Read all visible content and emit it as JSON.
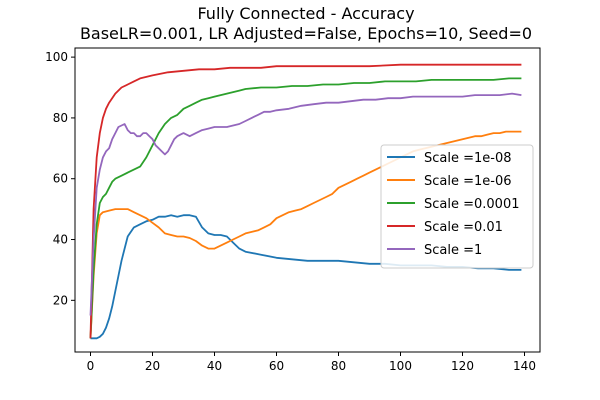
{
  "chart_data": {
    "type": "line",
    "title_line1": "Fully Connected - Accuracy",
    "title_line2": "BaseLR=0.001, LR Adjusted=False, Epochs=10, Seed=0",
    "xlabel": "",
    "ylabel": "",
    "xlim": [
      -5,
      145
    ],
    "ylim": [
      3,
      103
    ],
    "xticks": [
      0,
      20,
      40,
      60,
      80,
      100,
      120,
      140
    ],
    "yticks": [
      20,
      40,
      60,
      80,
      100
    ],
    "grid": false,
    "legend_position": "center-right",
    "series": [
      {
        "name": "Scale =1e-08",
        "color": "#1f77b4",
        "points": [
          [
            0,
            7.5
          ],
          [
            2,
            7.5
          ],
          [
            3,
            8
          ],
          [
            4,
            9
          ],
          [
            5,
            11
          ],
          [
            6,
            14
          ],
          [
            7,
            18
          ],
          [
            8,
            23
          ],
          [
            9,
            28
          ],
          [
            10,
            33
          ],
          [
            11,
            37
          ],
          [
            12,
            41
          ],
          [
            14,
            44
          ],
          [
            16,
            45
          ],
          [
            18,
            46
          ],
          [
            20,
            46.5
          ],
          [
            22,
            47.5
          ],
          [
            24,
            47.5
          ],
          [
            26,
            48
          ],
          [
            28,
            47.5
          ],
          [
            30,
            48
          ],
          [
            32,
            48
          ],
          [
            34,
            47.5
          ],
          [
            36,
            44
          ],
          [
            38,
            42
          ],
          [
            40,
            41.5
          ],
          [
            42,
            41.5
          ],
          [
            44,
            41
          ],
          [
            46,
            39
          ],
          [
            48,
            37
          ],
          [
            50,
            36
          ],
          [
            55,
            35
          ],
          [
            60,
            34
          ],
          [
            65,
            33.5
          ],
          [
            70,
            33
          ],
          [
            75,
            33
          ],
          [
            80,
            33
          ],
          [
            85,
            32.5
          ],
          [
            90,
            32
          ],
          [
            95,
            32
          ],
          [
            100,
            31.5
          ],
          [
            105,
            31.5
          ],
          [
            110,
            31.5
          ],
          [
            115,
            31
          ],
          [
            120,
            31
          ],
          [
            125,
            30.5
          ],
          [
            130,
            30.5
          ],
          [
            135,
            30
          ],
          [
            139,
            30
          ]
        ]
      },
      {
        "name": "Scale =1e-06",
        "color": "#ff7f0e",
        "points": [
          [
            0,
            7.5
          ],
          [
            1,
            28
          ],
          [
            2,
            42
          ],
          [
            3,
            48
          ],
          [
            4,
            49
          ],
          [
            6,
            49.5
          ],
          [
            8,
            50
          ],
          [
            10,
            50
          ],
          [
            12,
            50
          ],
          [
            14,
            49
          ],
          [
            16,
            48
          ],
          [
            18,
            47
          ],
          [
            20,
            45.5
          ],
          [
            22,
            44
          ],
          [
            24,
            42
          ],
          [
            26,
            41.5
          ],
          [
            28,
            41
          ],
          [
            30,
            41
          ],
          [
            32,
            40.5
          ],
          [
            34,
            39.5
          ],
          [
            36,
            38
          ],
          [
            38,
            37
          ],
          [
            40,
            37
          ],
          [
            42,
            38
          ],
          [
            44,
            39
          ],
          [
            46,
            40
          ],
          [
            48,
            41
          ],
          [
            50,
            42
          ],
          [
            52,
            42.5
          ],
          [
            54,
            43
          ],
          [
            56,
            44
          ],
          [
            58,
            45
          ],
          [
            60,
            47
          ],
          [
            62,
            48
          ],
          [
            64,
            49
          ],
          [
            66,
            49.5
          ],
          [
            68,
            50
          ],
          [
            70,
            51
          ],
          [
            72,
            52
          ],
          [
            74,
            53
          ],
          [
            76,
            54
          ],
          [
            78,
            55
          ],
          [
            80,
            57
          ],
          [
            82,
            58
          ],
          [
            84,
            59
          ],
          [
            86,
            60
          ],
          [
            88,
            61
          ],
          [
            90,
            62
          ],
          [
            92,
            63
          ],
          [
            94,
            64
          ],
          [
            96,
            65
          ],
          [
            98,
            66
          ],
          [
            100,
            67
          ],
          [
            102,
            68
          ],
          [
            104,
            69
          ],
          [
            106,
            69.5
          ],
          [
            108,
            70
          ],
          [
            110,
            70.5
          ],
          [
            112,
            71
          ],
          [
            114,
            71.5
          ],
          [
            116,
            72
          ],
          [
            118,
            72.5
          ],
          [
            120,
            73
          ],
          [
            122,
            73.5
          ],
          [
            124,
            74
          ],
          [
            126,
            74
          ],
          [
            128,
            74.5
          ],
          [
            130,
            75
          ],
          [
            132,
            75
          ],
          [
            134,
            75.5
          ],
          [
            136,
            75.5
          ],
          [
            139,
            75.5
          ]
        ]
      },
      {
        "name": "Scale =0.0001",
        "color": "#2ca02c",
        "points": [
          [
            0,
            7.5
          ],
          [
            1,
            30
          ],
          [
            2,
            45
          ],
          [
            3,
            52
          ],
          [
            4,
            54
          ],
          [
            5,
            55
          ],
          [
            6,
            57
          ],
          [
            7,
            59
          ],
          [
            8,
            60
          ],
          [
            10,
            61
          ],
          [
            12,
            62
          ],
          [
            14,
            63
          ],
          [
            16,
            64
          ],
          [
            18,
            67
          ],
          [
            20,
            71
          ],
          [
            22,
            75
          ],
          [
            24,
            78
          ],
          [
            26,
            80
          ],
          [
            28,
            81
          ],
          [
            30,
            83
          ],
          [
            32,
            84
          ],
          [
            34,
            85
          ],
          [
            36,
            86
          ],
          [
            38,
            86.5
          ],
          [
            40,
            87
          ],
          [
            42,
            87.5
          ],
          [
            44,
            88
          ],
          [
            46,
            88.5
          ],
          [
            48,
            89
          ],
          [
            50,
            89.5
          ],
          [
            55,
            90
          ],
          [
            60,
            90
          ],
          [
            65,
            90.5
          ],
          [
            70,
            90.5
          ],
          [
            75,
            91
          ],
          [
            80,
            91
          ],
          [
            85,
            91.5
          ],
          [
            90,
            91.5
          ],
          [
            95,
            92
          ],
          [
            100,
            92
          ],
          [
            105,
            92
          ],
          [
            110,
            92.5
          ],
          [
            115,
            92.5
          ],
          [
            120,
            92.5
          ],
          [
            125,
            92.5
          ],
          [
            130,
            92.5
          ],
          [
            135,
            93
          ],
          [
            139,
            93
          ]
        ]
      },
      {
        "name": "Scale =0.01",
        "color": "#d62728",
        "points": [
          [
            0,
            7.5
          ],
          [
            1,
            50
          ],
          [
            2,
            67
          ],
          [
            3,
            75
          ],
          [
            4,
            80
          ],
          [
            5,
            83
          ],
          [
            6,
            85
          ],
          [
            8,
            88
          ],
          [
            10,
            90
          ],
          [
            12,
            91
          ],
          [
            14,
            92
          ],
          [
            16,
            93
          ],
          [
            18,
            93.5
          ],
          [
            20,
            94
          ],
          [
            25,
            95
          ],
          [
            30,
            95.5
          ],
          [
            35,
            96
          ],
          [
            40,
            96
          ],
          [
            45,
            96.5
          ],
          [
            50,
            96.5
          ],
          [
            55,
            96.5
          ],
          [
            60,
            97
          ],
          [
            70,
            97
          ],
          [
            80,
            97
          ],
          [
            90,
            97
          ],
          [
            100,
            97.5
          ],
          [
            110,
            97.5
          ],
          [
            120,
            97.5
          ],
          [
            130,
            97.5
          ],
          [
            139,
            97.5
          ]
        ]
      },
      {
        "name": "Scale =1",
        "color": "#9467bd",
        "points": [
          [
            0,
            15
          ],
          [
            1,
            40
          ],
          [
            2,
            57
          ],
          [
            3,
            63
          ],
          [
            4,
            67
          ],
          [
            5,
            69
          ],
          [
            6,
            70
          ],
          [
            7,
            73
          ],
          [
            8,
            75
          ],
          [
            9,
            77
          ],
          [
            10,
            77.5
          ],
          [
            11,
            78
          ],
          [
            12,
            76
          ],
          [
            13,
            75
          ],
          [
            14,
            75
          ],
          [
            15,
            74
          ],
          [
            16,
            74
          ],
          [
            17,
            75
          ],
          [
            18,
            75
          ],
          [
            19,
            74
          ],
          [
            20,
            73
          ],
          [
            21,
            71
          ],
          [
            22,
            70
          ],
          [
            23,
            69
          ],
          [
            24,
            68
          ],
          [
            25,
            69
          ],
          [
            26,
            71
          ],
          [
            27,
            73
          ],
          [
            28,
            74
          ],
          [
            29,
            74.5
          ],
          [
            30,
            75
          ],
          [
            32,
            74
          ],
          [
            34,
            75
          ],
          [
            36,
            76
          ],
          [
            38,
            76.5
          ],
          [
            40,
            77
          ],
          [
            44,
            77
          ],
          [
            48,
            78
          ],
          [
            50,
            79
          ],
          [
            52,
            80
          ],
          [
            54,
            81
          ],
          [
            56,
            82
          ],
          [
            58,
            82
          ],
          [
            60,
            82.5
          ],
          [
            64,
            83
          ],
          [
            68,
            84
          ],
          [
            72,
            84.5
          ],
          [
            76,
            85
          ],
          [
            80,
            85
          ],
          [
            84,
            85.5
          ],
          [
            88,
            86
          ],
          [
            92,
            86
          ],
          [
            96,
            86.5
          ],
          [
            100,
            86.5
          ],
          [
            104,
            87
          ],
          [
            108,
            87
          ],
          [
            112,
            87
          ],
          [
            116,
            87
          ],
          [
            120,
            87
          ],
          [
            124,
            87.5
          ],
          [
            128,
            87.5
          ],
          [
            132,
            87.5
          ],
          [
            136,
            88
          ],
          [
            139,
            87.5
          ]
        ]
      }
    ]
  }
}
